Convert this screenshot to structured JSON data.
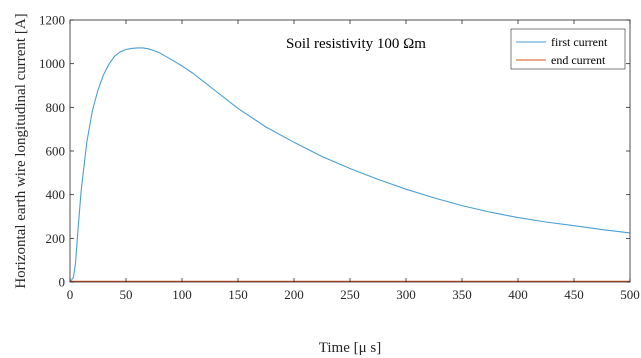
{
  "chart_data": {
    "type": "line",
    "xlabel": "Time [μ s]",
    "ylabel": "Horizontal earth wire longitudinal current [A]",
    "annotation": "Soil resistivity 100 Ωm",
    "xlim": [
      0,
      500
    ],
    "ylim": [
      0,
      1200
    ],
    "xticks": [
      0,
      50,
      100,
      150,
      200,
      250,
      300,
      350,
      400,
      450,
      500
    ],
    "yticks": [
      0,
      200,
      400,
      600,
      800,
      1000,
      1200
    ],
    "grid": false,
    "legend_position": "top-right",
    "series": [
      {
        "name": "first current",
        "color": "#4a9fd4",
        "x": [
          0,
          3,
          5,
          7,
          10,
          15,
          20,
          25,
          30,
          35,
          40,
          45,
          50,
          55,
          60,
          65,
          70,
          75,
          80,
          90,
          100,
          110,
          120,
          130,
          140,
          150,
          175,
          200,
          225,
          250,
          275,
          300,
          325,
          350,
          375,
          400,
          425,
          450,
          475,
          500
        ],
        "y": [
          0,
          20,
          90,
          230,
          420,
          640,
          785,
          880,
          950,
          1000,
          1035,
          1055,
          1065,
          1070,
          1072,
          1072,
          1068,
          1060,
          1050,
          1020,
          990,
          955,
          915,
          875,
          835,
          795,
          710,
          640,
          575,
          520,
          470,
          425,
          385,
          350,
          320,
          295,
          275,
          258,
          240,
          225
        ]
      },
      {
        "name": "end current",
        "color": "#d95319",
        "x": [
          0,
          100,
          200,
          300,
          400,
          500
        ],
        "y": [
          3,
          3,
          3,
          3,
          3,
          3
        ]
      }
    ]
  }
}
